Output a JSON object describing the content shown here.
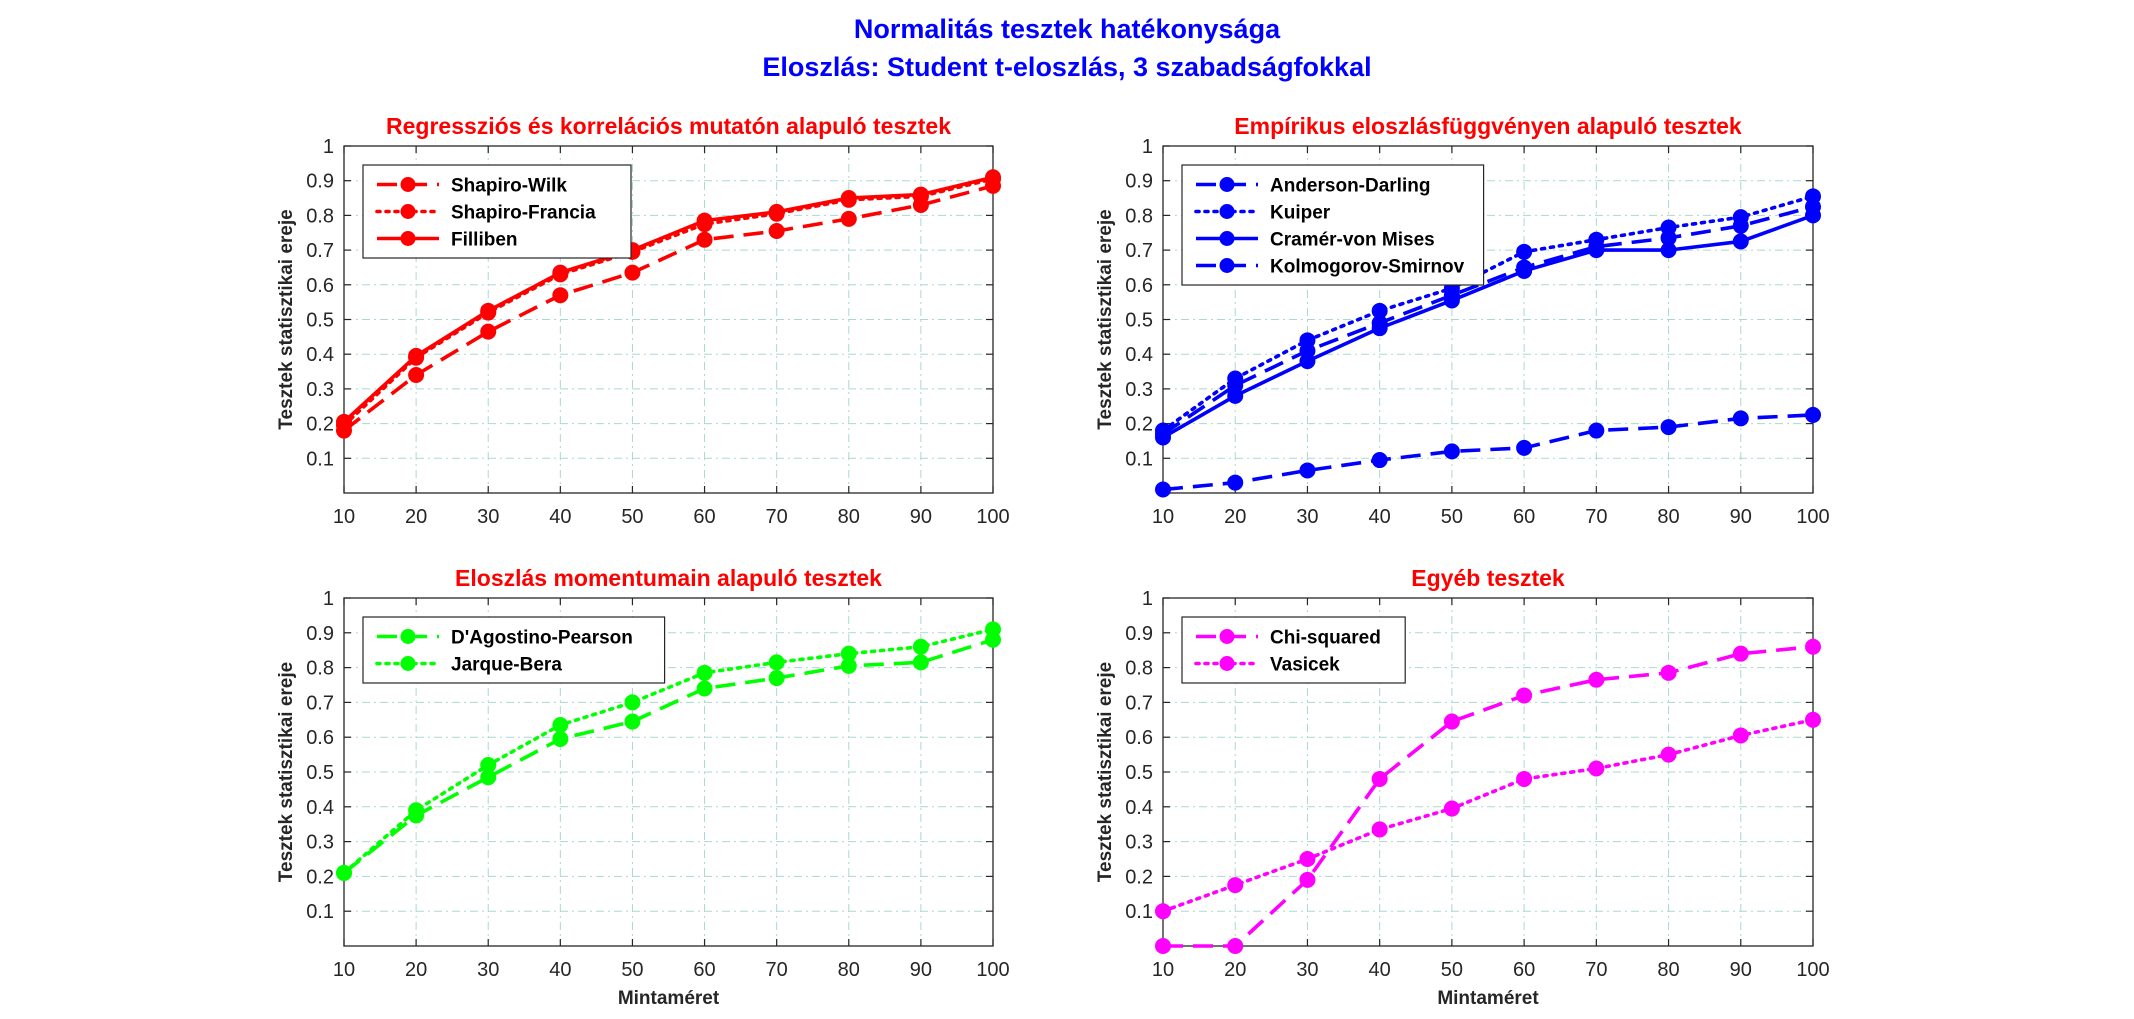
{
  "figure": {
    "title_line1": "Normalitás tesztek hatékonysága",
    "title_line2": "Eloszlás: Student t-eloszlás, 3 szabadságfokkal",
    "title_color": "#0000ff"
  },
  "chart_data": [
    {
      "type": "line",
      "title": "Regressziós és korrelációs mutatón alapuló tesztek",
      "title_color": "#ff0000",
      "xlabel": "",
      "ylabel": "Tesztek statisztikai ereje",
      "x": [
        10,
        20,
        30,
        40,
        50,
        60,
        70,
        80,
        90,
        100
      ],
      "xlim": [
        10,
        100
      ],
      "ylim": [
        0,
        1
      ],
      "xticks": [
        "10",
        "20",
        "30",
        "40",
        "50",
        "60",
        "70",
        "80",
        "90",
        "100"
      ],
      "yticks": [
        "0.1",
        "0.2",
        "0.3",
        "0.4",
        "0.5",
        "0.6",
        "0.7",
        "0.8",
        "0.9",
        "1"
      ],
      "grid": true,
      "legend_location": "top-left",
      "series": [
        {
          "name": "Shapiro-Wilk",
          "style": "dashed",
          "color": "#ff0000",
          "values": [
            0.18,
            0.34,
            0.465,
            0.57,
            0.635,
            0.73,
            0.755,
            0.79,
            0.83,
            0.885
          ]
        },
        {
          "name": "Shapiro-Francia",
          "style": "dotted",
          "color": "#ff0000",
          "values": [
            0.195,
            0.39,
            0.52,
            0.63,
            0.695,
            0.775,
            0.805,
            0.845,
            0.855,
            0.905
          ]
        },
        {
          "name": "Filliben",
          "style": "solid",
          "color": "#ff0000",
          "values": [
            0.205,
            0.395,
            0.525,
            0.635,
            0.7,
            0.785,
            0.81,
            0.85,
            0.86,
            0.91
          ]
        }
      ]
    },
    {
      "type": "line",
      "title": "Empírikus eloszlásfüggvényen alapuló tesztek",
      "title_color": "#ff0000",
      "xlabel": "",
      "ylabel": "Tesztek statisztikai ereje",
      "x": [
        10,
        20,
        30,
        40,
        50,
        60,
        70,
        80,
        90,
        100
      ],
      "xlim": [
        10,
        100
      ],
      "ylim": [
        0,
        1
      ],
      "xticks": [
        "10",
        "20",
        "30",
        "40",
        "50",
        "60",
        "70",
        "80",
        "90",
        "100"
      ],
      "yticks": [
        "0.1",
        "0.2",
        "0.3",
        "0.4",
        "0.5",
        "0.6",
        "0.7",
        "0.8",
        "0.9",
        "1"
      ],
      "grid": true,
      "legend_location": "top-left",
      "series": [
        {
          "name": "Anderson-Darling",
          "style": "dashed",
          "color": "#0000ff",
          "values": [
            0.17,
            0.31,
            0.41,
            0.49,
            0.57,
            0.65,
            0.71,
            0.735,
            0.77,
            0.825
          ]
        },
        {
          "name": "Kuiper",
          "style": "dotted",
          "color": "#0000ff",
          "values": [
            0.18,
            0.33,
            0.44,
            0.525,
            0.59,
            0.695,
            0.73,
            0.765,
            0.795,
            0.855
          ]
        },
        {
          "name": "Cramér-von Mises",
          "style": "solid",
          "color": "#0000ff",
          "values": [
            0.16,
            0.28,
            0.38,
            0.475,
            0.555,
            0.64,
            0.7,
            0.7,
            0.725,
            0.8
          ]
        },
        {
          "name": "Kolmogorov-Smirnov",
          "style": "dashed",
          "color": "#0000ff",
          "values": [
            0.01,
            0.03,
            0.065,
            0.095,
            0.12,
            0.13,
            0.18,
            0.19,
            0.215,
            0.225
          ]
        }
      ]
    },
    {
      "type": "line",
      "title": "Eloszlás momentumain alapuló tesztek",
      "title_color": "#ff0000",
      "xlabel": "Mintaméret",
      "ylabel": "Tesztek statisztikai ereje",
      "x": [
        10,
        20,
        30,
        40,
        50,
        60,
        70,
        80,
        90,
        100
      ],
      "xlim": [
        10,
        100
      ],
      "ylim": [
        0,
        1
      ],
      "xticks": [
        "10",
        "20",
        "30",
        "40",
        "50",
        "60",
        "70",
        "80",
        "90",
        "100"
      ],
      "yticks": [
        "0.1",
        "0.2",
        "0.3",
        "0.4",
        "0.5",
        "0.6",
        "0.7",
        "0.8",
        "0.9",
        "1"
      ],
      "grid": true,
      "legend_location": "top-left",
      "series": [
        {
          "name": "D'Agostino-Pearson",
          "style": "dashed",
          "color": "#00ff00",
          "values": [
            0.21,
            0.375,
            0.485,
            0.595,
            0.645,
            0.74,
            0.77,
            0.805,
            0.815,
            0.88
          ]
        },
        {
          "name": "Jarque-Bera",
          "style": "dotted",
          "color": "#00ff00",
          "values": [
            0.21,
            0.39,
            0.52,
            0.635,
            0.7,
            0.785,
            0.815,
            0.84,
            0.86,
            0.91
          ]
        }
      ]
    },
    {
      "type": "line",
      "title": "Egyéb tesztek",
      "title_color": "#ff0000",
      "xlabel": "Mintaméret",
      "ylabel": "Tesztek statisztikai ereje",
      "x": [
        10,
        20,
        30,
        40,
        50,
        60,
        70,
        80,
        90,
        100
      ],
      "xlim": [
        10,
        100
      ],
      "ylim": [
        0,
        1
      ],
      "xticks": [
        "10",
        "20",
        "30",
        "40",
        "50",
        "60",
        "70",
        "80",
        "90",
        "100"
      ],
      "yticks": [
        "0.1",
        "0.2",
        "0.3",
        "0.4",
        "0.5",
        "0.6",
        "0.7",
        "0.8",
        "0.9",
        "1"
      ],
      "grid": true,
      "legend_location": "top-left",
      "series": [
        {
          "name": "Chi-squared",
          "style": "dashed",
          "color": "#ff00ff",
          "values": [
            0.0,
            0.0,
            0.19,
            0.48,
            0.645,
            0.72,
            0.765,
            0.785,
            0.84,
            0.86
          ]
        },
        {
          "name": "Vasicek",
          "style": "dotted",
          "color": "#ff00ff",
          "values": [
            0.1,
            0.175,
            0.25,
            0.335,
            0.395,
            0.48,
            0.51,
            0.55,
            0.605,
            0.65
          ]
        }
      ]
    }
  ]
}
